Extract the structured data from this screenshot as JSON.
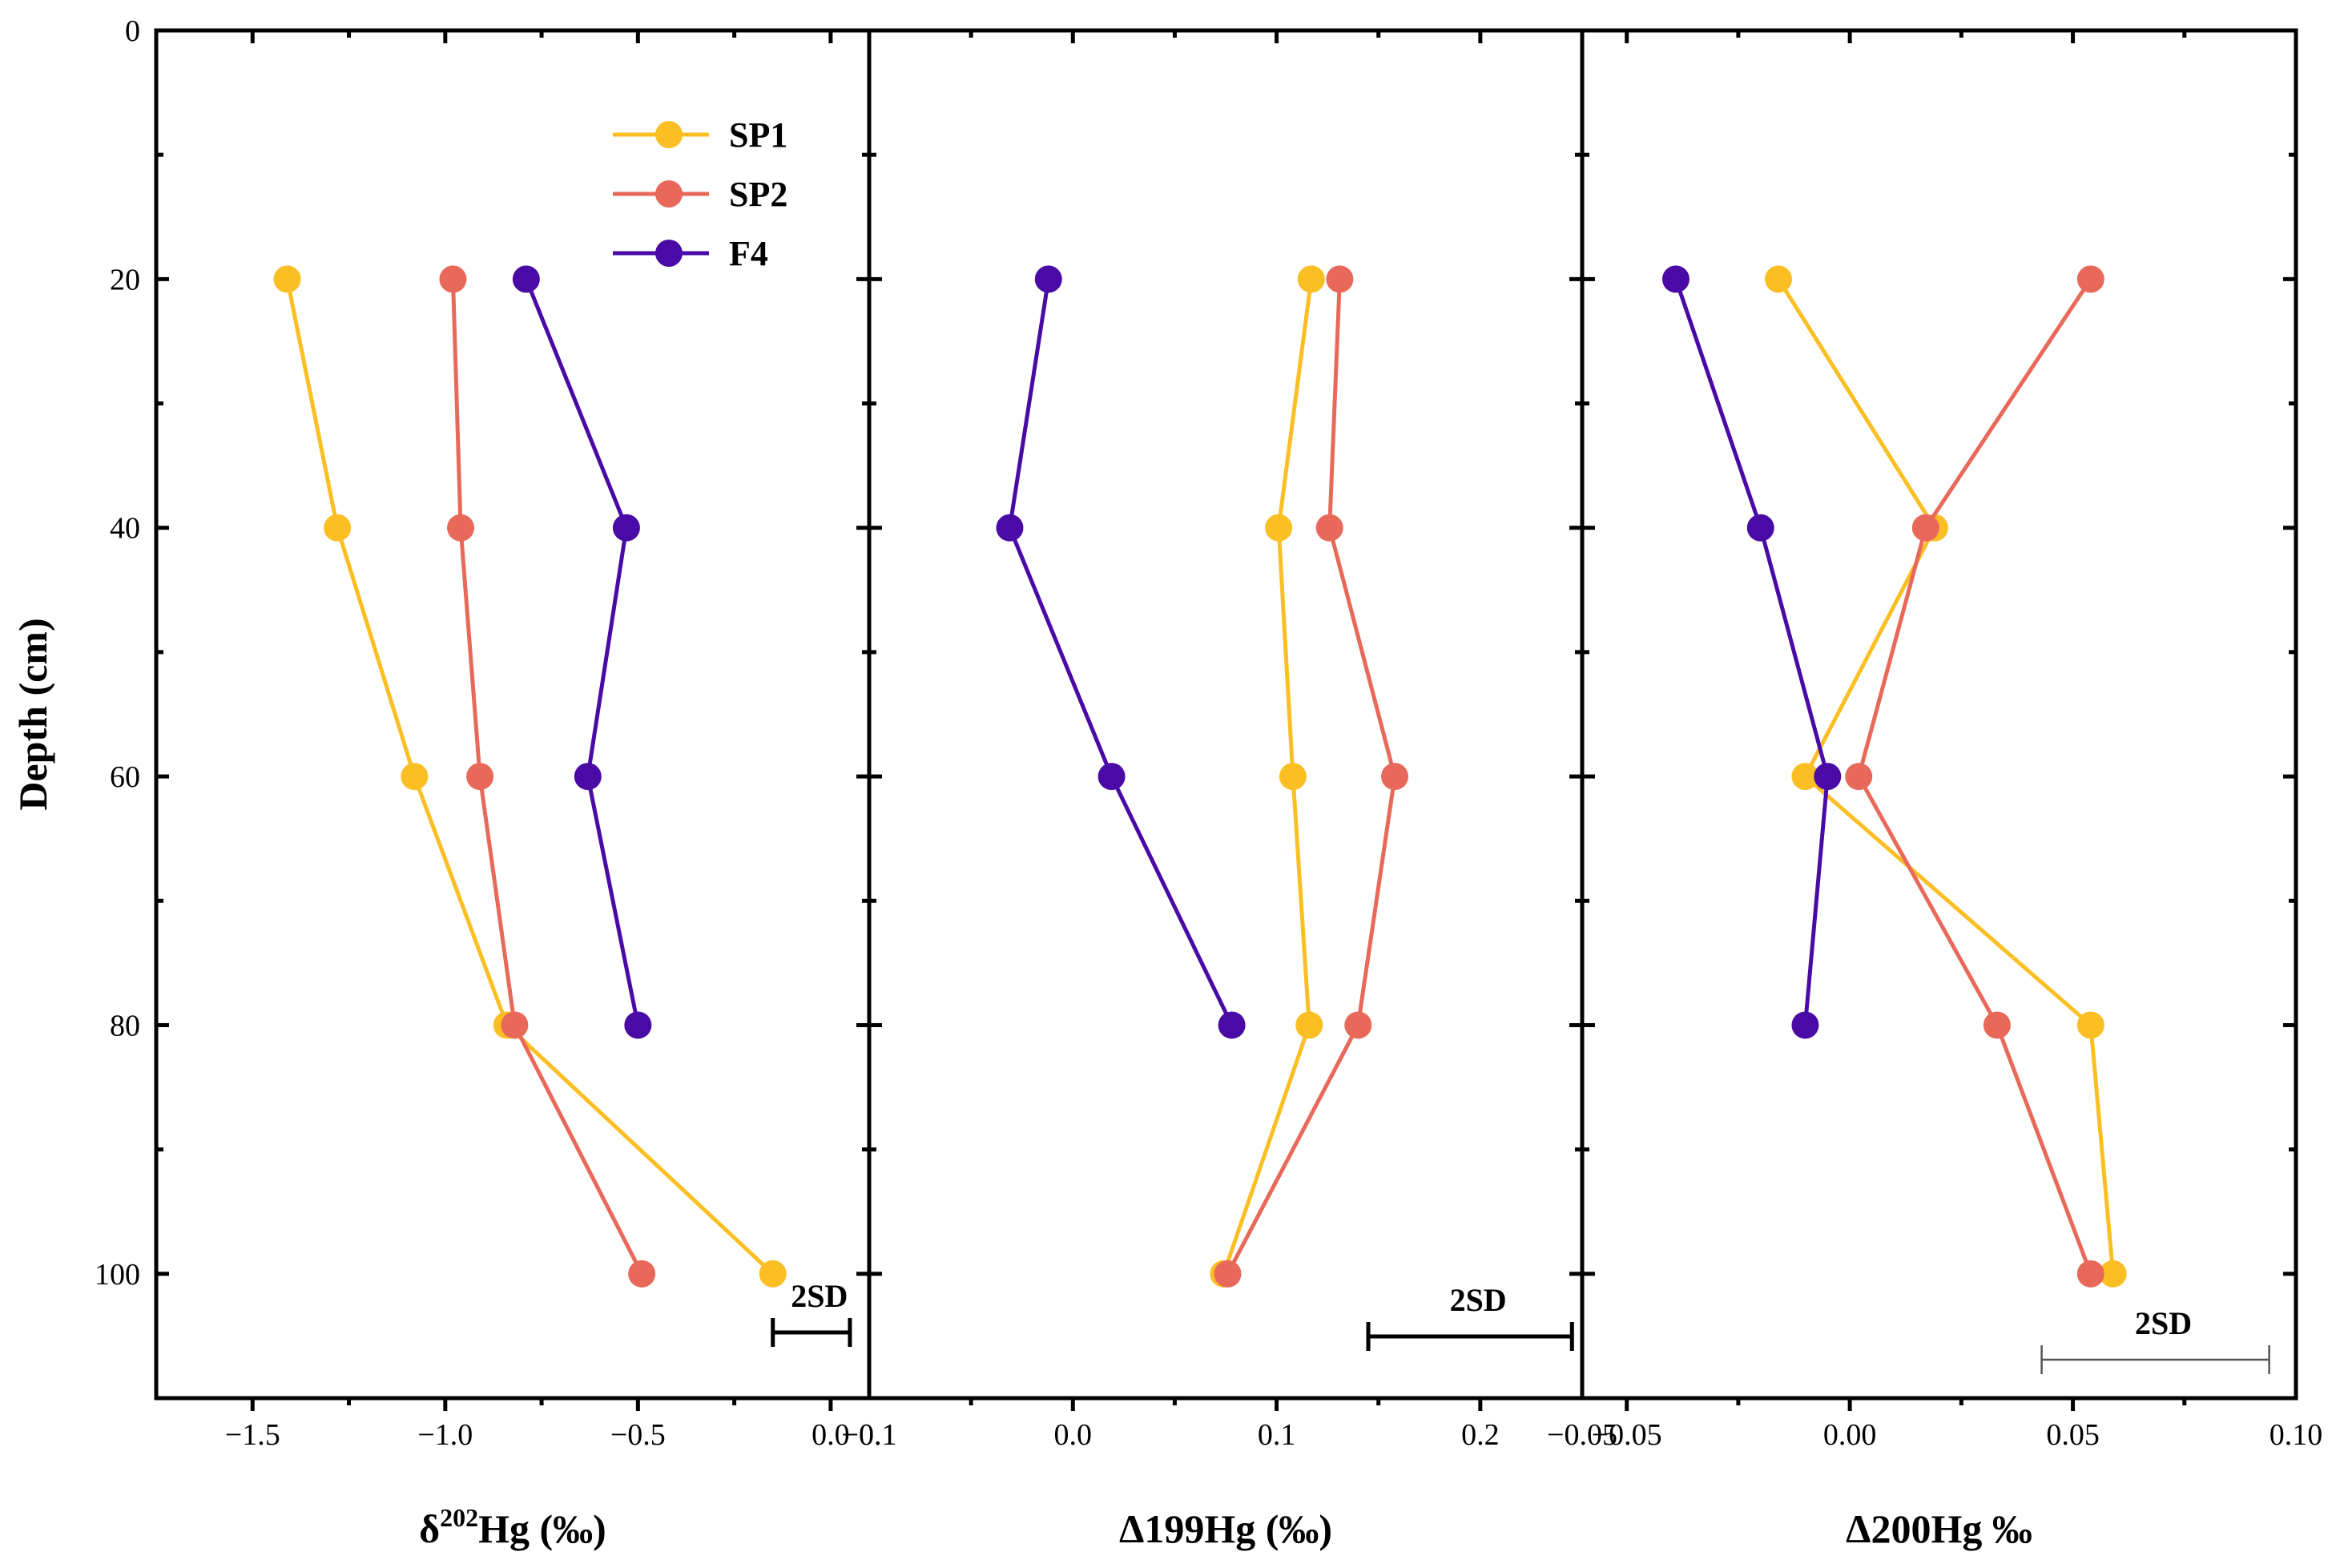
{
  "chart_data": {
    "type": "line",
    "y_axis": {
      "label": "Depth (cm)",
      "inverted": true,
      "range": [
        0,
        110
      ],
      "ticks": [
        0,
        20,
        40,
        60,
        80,
        100
      ],
      "tick_labels": [
        "0",
        "20",
        "40",
        "60",
        "80",
        "100"
      ]
    },
    "legend": {
      "placement": "top-left of first panel",
      "entries": [
        {
          "name": "SP1",
          "color": "#FBBF24"
        },
        {
          "name": "SP2",
          "color": "#E8695A"
        },
        {
          "name": "F4",
          "color": "#4A0AA6"
        }
      ]
    },
    "panels": [
      {
        "id": "d202",
        "xlabel_main": "δ",
        "xlabel_sup": "202",
        "xlabel_rest": "Hg (‰)",
        "xrange": [
          -1.75,
          0.1
        ],
        "x_ticks": [
          -1.5,
          -1.0,
          -0.5,
          0.0
        ],
        "x_tick_labels": [
          "−1.5",
          "−1.0",
          "−0.5",
          "0.0"
        ],
        "sd_label": "2SD",
        "sd_range": [
          -0.15,
          0.05
        ],
        "series": [
          {
            "name": "SP1",
            "color": "#FBBF24",
            "depth": [
              20,
              40,
              60,
              80,
              100
            ],
            "values": [
              -1.41,
              -1.28,
              -1.08,
              -0.84,
              -0.15
            ]
          },
          {
            "name": "SP2",
            "color": "#E8695A",
            "depth": [
              20,
              40,
              60,
              80,
              100
            ],
            "values": [
              -0.98,
              -0.96,
              -0.91,
              -0.82,
              -0.49
            ]
          },
          {
            "name": "F4",
            "color": "#4A0AA6",
            "depth": [
              20,
              40,
              60,
              80
            ],
            "values": [
              -0.79,
              -0.53,
              -0.63,
              -0.5
            ]
          }
        ]
      },
      {
        "id": "D199",
        "xlabel_main": "Δ199Hg (‰)",
        "xrange": [
          -0.1,
          0.25
        ],
        "x_ticks": [
          -0.1,
          0.0,
          0.1,
          0.2
        ],
        "x_tick_labels": [
          "−0.1",
          "0.0",
          "0.1",
          "0.2"
        ],
        "sd_label": "2SD",
        "sd_range": [
          0.145,
          0.245
        ],
        "series": [
          {
            "name": "SP1",
            "color": "#FBBF24",
            "depth": [
              20,
              40,
              60,
              80,
              100
            ],
            "values": [
              0.117,
              0.101,
              0.108,
              0.116,
              0.074
            ]
          },
          {
            "name": "SP2",
            "color": "#E8695A",
            "depth": [
              20,
              40,
              60,
              80,
              100
            ],
            "values": [
              0.131,
              0.126,
              0.158,
              0.14,
              0.076
            ]
          },
          {
            "name": "F4",
            "color": "#4A0AA6",
            "depth": [
              20,
              40,
              60,
              80
            ],
            "values": [
              -0.012,
              -0.031,
              0.019,
              0.078
            ]
          }
        ]
      },
      {
        "id": "D200",
        "xlabel_main": "Δ200Hg ‰",
        "xrange": [
          -0.06,
          0.1
        ],
        "x_ticks": [
          -0.05,
          0.0,
          0.05,
          0.1
        ],
        "x_tick_labels": [
          "−0.05",
          "0.00",
          "0.05",
          "0.10"
        ],
        "sd_label": "2SD",
        "sd_range": [
          0.043,
          0.094
        ],
        "series": [
          {
            "name": "SP1",
            "color": "#FBBF24",
            "depth": [
              20,
              40,
              60,
              80,
              100
            ],
            "values": [
              -0.016,
              0.019,
              -0.01,
              0.054,
              0.059
            ]
          },
          {
            "name": "SP2",
            "color": "#E8695A",
            "depth": [
              20,
              40,
              60,
              80,
              100
            ],
            "values": [
              0.054,
              0.017,
              0.002,
              0.033,
              0.054
            ]
          },
          {
            "name": "F4",
            "color": "#4A0AA6",
            "depth": [
              20,
              40,
              60,
              80
            ],
            "values": [
              -0.039,
              -0.02,
              -0.005,
              -0.01
            ]
          }
        ]
      }
    ]
  }
}
